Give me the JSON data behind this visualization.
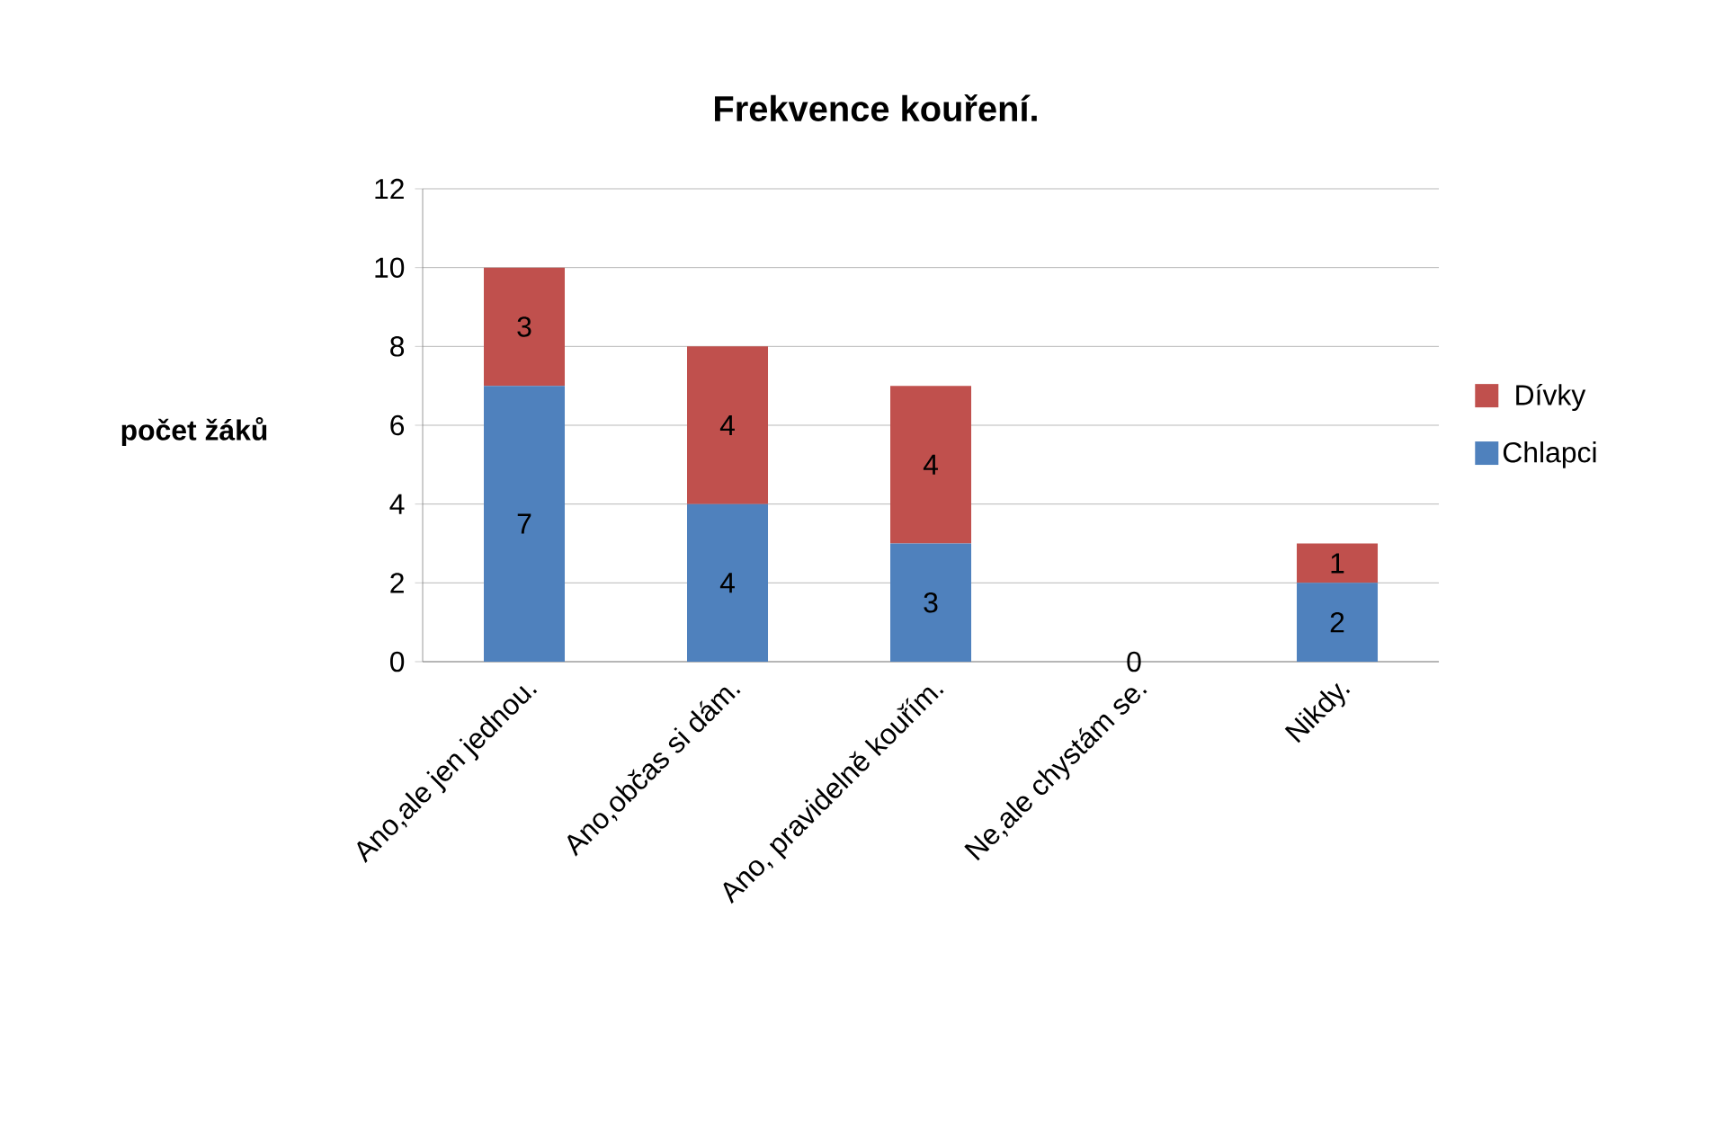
{
  "chart_data": {
    "type": "bar",
    "title": "Frekvence kouření.",
    "ylabel": "počet žáků",
    "stacked": true,
    "categories": [
      "Ano,ale jen jednou.",
      "Ano,občas si dám.",
      "Ano, pravidelně kouřím.",
      "Ne,ale chystám se.",
      "Nikdy."
    ],
    "series": [
      {
        "name": "Chlapci",
        "color": "#4f81bd",
        "values": [
          7,
          4,
          3,
          0,
          2
        ],
        "value_labels": [
          "7",
          "4",
          "3",
          "0",
          "2"
        ]
      },
      {
        "name": "Dívky",
        "color": "#c0504d",
        "values": [
          3,
          4,
          4,
          0,
          1
        ],
        "value_labels": [
          "3",
          "4",
          "4",
          null,
          "1"
        ]
      }
    ],
    "ylim": [
      0,
      12
    ],
    "yticks": [
      0,
      2,
      4,
      6,
      8,
      10,
      12
    ],
    "grid": "y",
    "legend": "right"
  }
}
